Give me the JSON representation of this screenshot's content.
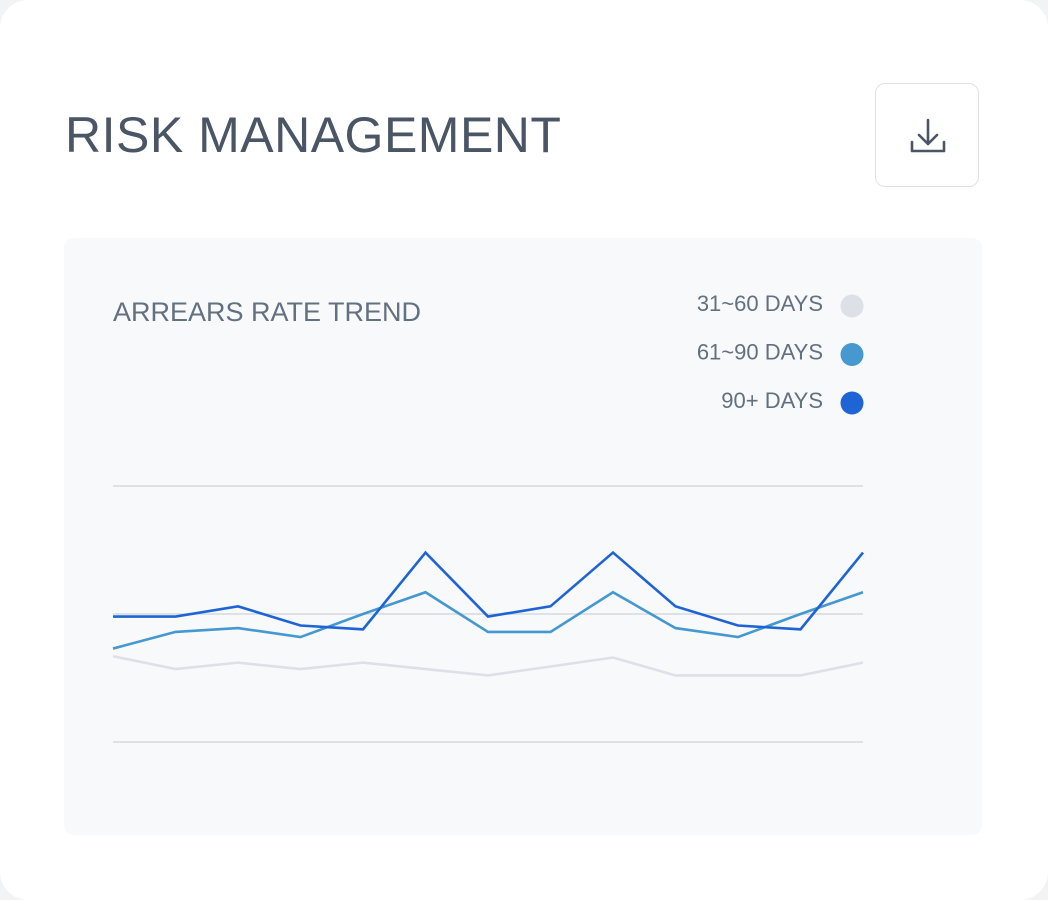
{
  "header": {
    "title": "RISK MANAGEMENT"
  },
  "chart_data": {
    "type": "line",
    "title": "ARREARS RATE TREND",
    "categories": [
      null,
      null,
      null,
      null,
      null,
      null,
      null,
      null,
      null,
      null,
      null,
      null,
      null
    ],
    "series": [
      {
        "name": "31~60 DAYS",
        "color": "#dde0e6",
        "values": [
          0.67,
          0.57,
          0.62,
          0.57,
          0.62,
          0.57,
          0.52,
          0.59,
          0.66,
          0.52,
          0.52,
          0.52,
          0.62
        ]
      },
      {
        "name": "61~90 DAYS",
        "color": "#4598d0",
        "values": [
          0.73,
          0.86,
          0.89,
          0.82,
          1.0,
          1.17,
          0.86,
          0.86,
          1.17,
          0.89,
          0.82,
          1.0,
          1.17
        ]
      },
      {
        "name": "90+ DAYS",
        "color": "#1f64d4",
        "values": [
          0.98,
          0.98,
          1.06,
          0.91,
          0.88,
          1.48,
          0.98,
          1.06,
          1.48,
          1.06,
          0.91,
          0.88,
          1.48
        ]
      }
    ],
    "ylim": [
      0,
      2
    ],
    "yticks": [
      0,
      1,
      2
    ],
    "grid": true,
    "legend": "top-right"
  }
}
